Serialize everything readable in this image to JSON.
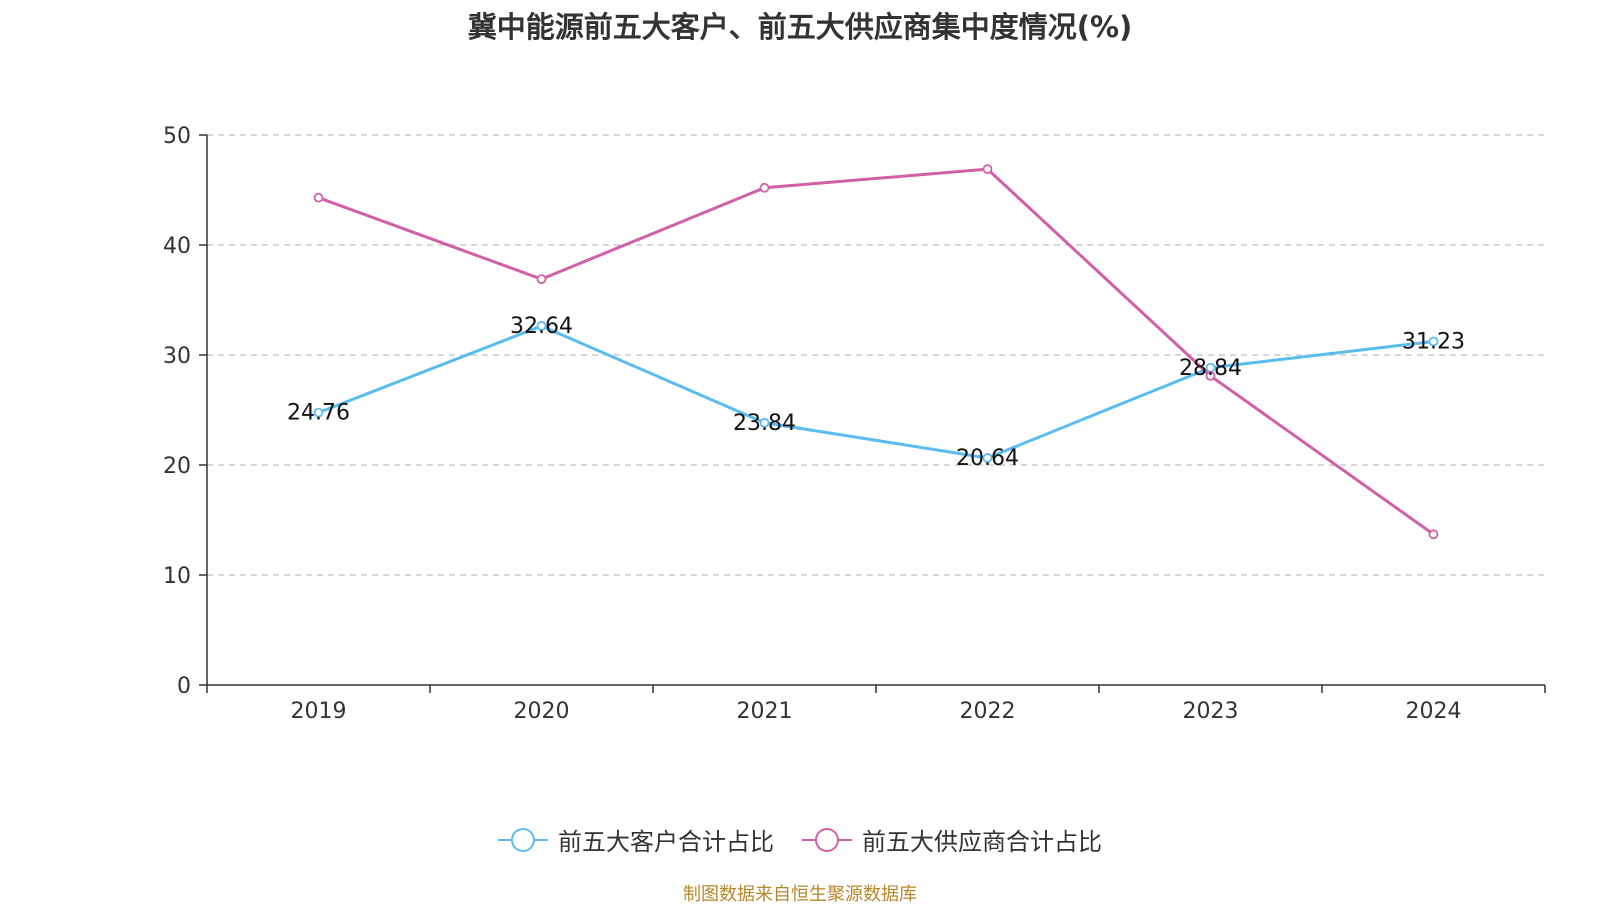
{
  "chart_data": {
    "type": "line",
    "title": "冀中能源前五大客户、前五大供应商集中度情况(%)",
    "categories": [
      "2019",
      "2020",
      "2021",
      "2022",
      "2023",
      "2024"
    ],
    "series": [
      {
        "name": "前五大客户合计占比",
        "color": "#5bbcf0",
        "values": [
          24.76,
          32.64,
          23.84,
          20.64,
          28.84,
          31.23
        ],
        "show_labels": true
      },
      {
        "name": "前五大供应商合计占比",
        "color": "#d060a8",
        "values": [
          44.3,
          36.9,
          45.2,
          46.9,
          28.1,
          13.7
        ],
        "show_labels": false
      }
    ],
    "ylim": [
      0,
      50
    ],
    "yticks": [
      0,
      10,
      20,
      30,
      40,
      50
    ],
    "grid": true,
    "legend_position": "bottom-center"
  },
  "source": "制图数据来自恒生聚源数据库"
}
